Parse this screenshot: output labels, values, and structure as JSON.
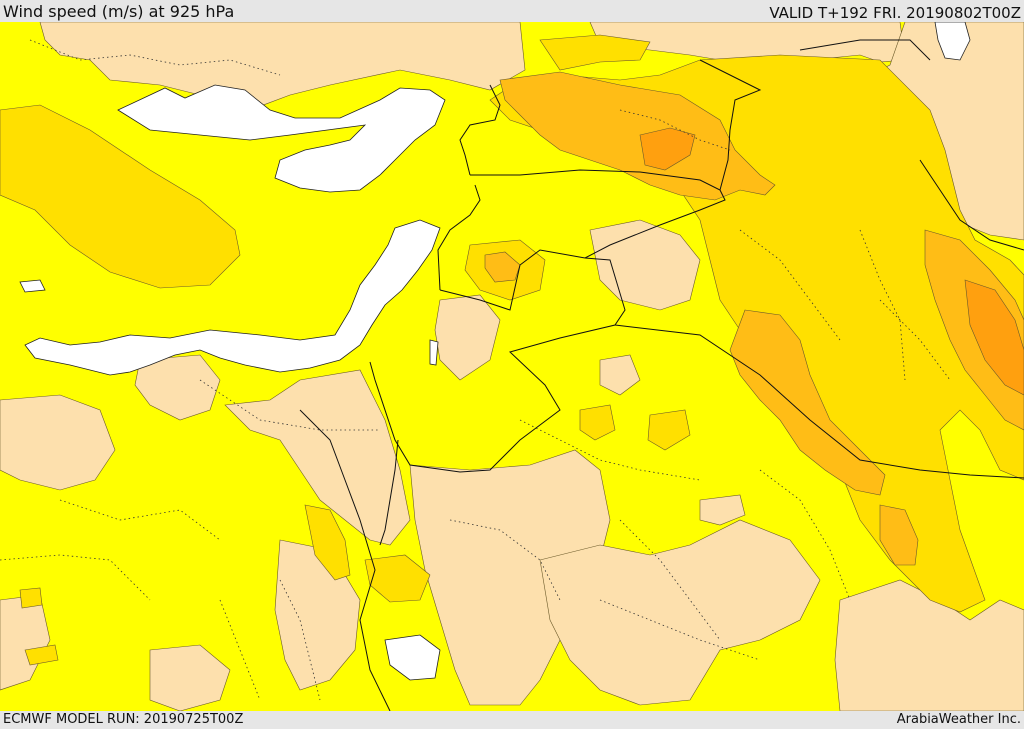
{
  "header": {
    "title": "Wind speed (m/s) at 925 hPa",
    "valid": "VALID T+192 FRI. 20190802T00Z"
  },
  "footer": {
    "model_run": "ECMWF MODEL RUN: 20190725T00Z",
    "credit": "ArabiaWeather Inc."
  },
  "colors": {
    "sea": "#ffffff",
    "light_wind": "#fde0ad",
    "moderate_wind": "#ffff00",
    "fresh_wind": "#ffe000",
    "strong_wind": "#ffbd16",
    "very_strong_wind": "#ffa00f"
  }
}
